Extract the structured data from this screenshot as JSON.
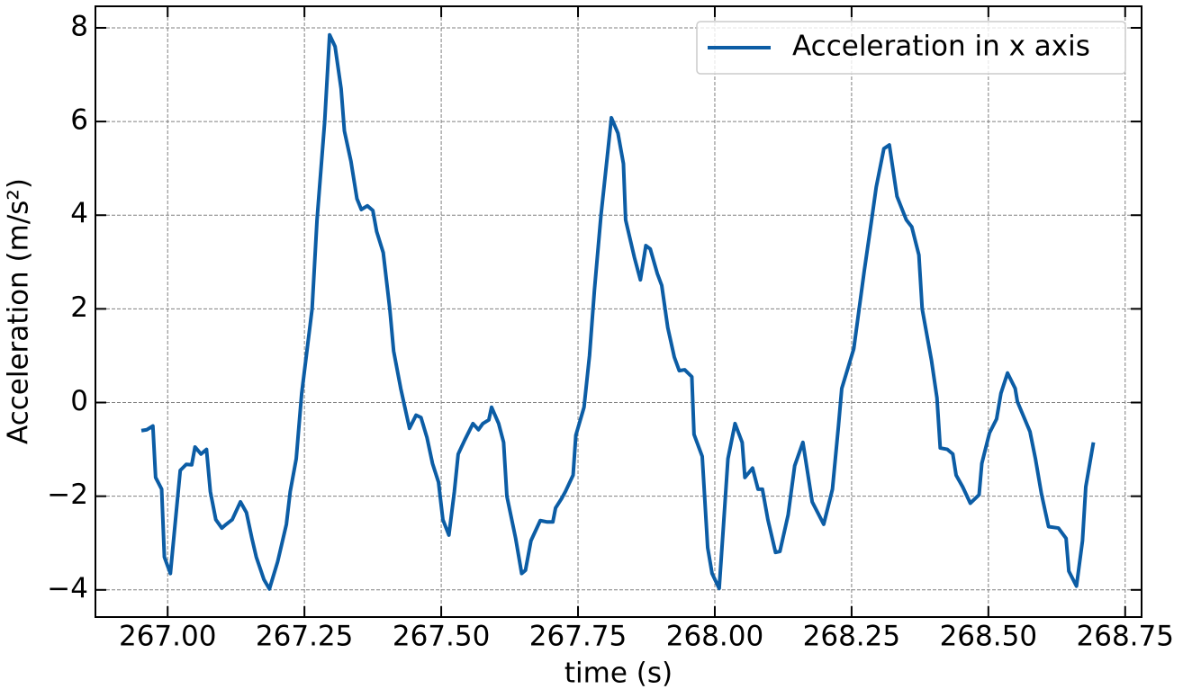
{
  "chart_data": {
    "type": "line",
    "xlabel": "time (s)",
    "ylabel": "Acceleration (m/s²)",
    "grid": true,
    "legend": "upper right",
    "xlim": [
      266.868,
      268.78
    ],
    "ylim": [
      -4.58,
      8.46
    ],
    "xticks": [
      {
        "value": 267.0,
        "label": "267.00"
      },
      {
        "value": 267.25,
        "label": "267.25"
      },
      {
        "value": 267.5,
        "label": "267.50"
      },
      {
        "value": 267.75,
        "label": "267.75"
      },
      {
        "value": 268.0,
        "label": "268.00"
      },
      {
        "value": 268.25,
        "label": "268.25"
      },
      {
        "value": 268.5,
        "label": "268.50"
      },
      {
        "value": 268.75,
        "label": "268.75"
      }
    ],
    "yticks": [
      {
        "value": -4,
        "label": "−4"
      },
      {
        "value": -2,
        "label": "−2"
      },
      0,
      2,
      4,
      6,
      8
    ],
    "x": [
      266.952,
      266.962,
      266.973,
      266.978,
      266.989,
      266.994,
      267.005,
      267.016,
      267.023,
      267.034,
      267.044,
      267.05,
      267.061,
      267.071,
      267.078,
      267.088,
      267.099,
      267.107,
      267.118,
      267.133,
      267.144,
      267.154,
      267.162,
      267.176,
      267.186,
      267.201,
      267.217,
      267.224,
      267.235,
      267.245,
      267.264,
      267.273,
      267.287,
      267.296,
      267.306,
      267.317,
      267.323,
      267.335,
      267.346,
      267.354,
      267.365,
      267.375,
      267.382,
      267.394,
      267.406,
      267.413,
      267.426,
      267.442,
      267.454,
      267.463,
      267.474,
      267.484,
      267.495,
      267.503,
      267.514,
      267.524,
      267.531,
      267.543,
      267.558,
      267.568,
      267.576,
      267.587,
      267.592,
      267.605,
      267.614,
      267.62,
      267.636,
      267.647,
      267.654,
      267.664,
      267.681,
      267.694,
      267.704,
      267.709,
      267.72,
      267.727,
      267.741,
      267.746,
      267.761,
      267.771,
      267.78,
      267.792,
      267.803,
      267.811,
      267.823,
      267.833,
      267.837,
      267.853,
      267.864,
      267.874,
      267.882,
      267.895,
      267.903,
      267.914,
      267.926,
      267.935,
      267.945,
      267.958,
      267.962,
      267.977,
      267.987,
      267.995,
      268.008,
      268.016,
      268.024,
      268.037,
      268.05,
      268.055,
      268.069,
      268.079,
      268.087,
      268.097,
      268.111,
      268.119,
      268.134,
      268.146,
      268.161,
      268.178,
      268.199,
      268.215,
      268.226,
      268.232,
      268.254,
      268.273,
      268.286,
      268.295,
      268.309,
      268.319,
      268.333,
      268.35,
      268.36,
      268.373,
      268.379,
      268.396,
      268.406,
      268.412,
      268.425,
      268.435,
      268.441,
      268.453,
      268.467,
      268.483,
      268.488,
      268.502,
      268.515,
      268.523,
      268.535,
      268.549,
      268.553,
      268.576,
      268.586,
      268.597,
      268.61,
      268.628,
      268.642,
      268.647,
      268.661,
      268.672,
      268.678,
      268.692
    ],
    "series": [
      {
        "name": "Acceleration in x axis",
        "color": "#0c5da5",
        "values": [
          -0.6,
          -0.58,
          -0.5,
          -1.6,
          -1.85,
          -3.3,
          -3.65,
          -2.3,
          -1.45,
          -1.32,
          -1.33,
          -0.95,
          -1.1,
          -1.0,
          -1.9,
          -2.5,
          -2.68,
          -2.6,
          -2.5,
          -2.12,
          -2.35,
          -2.9,
          -3.3,
          -3.78,
          -3.98,
          -3.4,
          -2.6,
          -1.9,
          -1.2,
          0.2,
          2.0,
          3.9,
          6.0,
          7.85,
          7.6,
          6.7,
          5.8,
          5.15,
          4.35,
          4.12,
          4.2,
          4.1,
          3.65,
          3.2,
          2.0,
          1.1,
          0.3,
          -0.55,
          -0.27,
          -0.32,
          -0.75,
          -1.3,
          -1.7,
          -2.5,
          -2.83,
          -1.9,
          -1.1,
          -0.8,
          -0.45,
          -0.58,
          -0.45,
          -0.37,
          -0.1,
          -0.45,
          -0.85,
          -2.0,
          -2.9,
          -3.65,
          -3.58,
          -2.95,
          -2.52,
          -2.55,
          -2.55,
          -2.25,
          -2.05,
          -1.9,
          -1.55,
          -0.7,
          -0.1,
          1.0,
          2.4,
          4.0,
          5.2,
          6.08,
          5.75,
          5.1,
          3.9,
          3.1,
          2.62,
          3.35,
          3.28,
          2.75,
          2.5,
          1.6,
          0.97,
          0.68,
          0.7,
          0.55,
          -0.68,
          -1.15,
          -3.1,
          -3.65,
          -3.97,
          -2.6,
          -1.2,
          -0.45,
          -0.85,
          -1.6,
          -1.4,
          -1.85,
          -1.85,
          -2.5,
          -3.2,
          -3.18,
          -2.4,
          -1.35,
          -0.85,
          -2.12,
          -2.6,
          -1.85,
          -0.5,
          0.3,
          1.15,
          2.8,
          3.85,
          4.6,
          5.42,
          5.5,
          4.4,
          3.9,
          3.75,
          3.15,
          2.0,
          0.9,
          0.1,
          -0.97,
          -1.0,
          -1.1,
          -1.55,
          -1.8,
          -2.15,
          -1.97,
          -1.3,
          -0.65,
          -0.35,
          0.2,
          0.63,
          0.3,
          0.02,
          -0.62,
          -1.2,
          -1.95,
          -2.65,
          -2.68,
          -2.9,
          -3.6,
          -3.92,
          -2.95,
          -1.8,
          -0.85
        ]
      }
    ]
  }
}
